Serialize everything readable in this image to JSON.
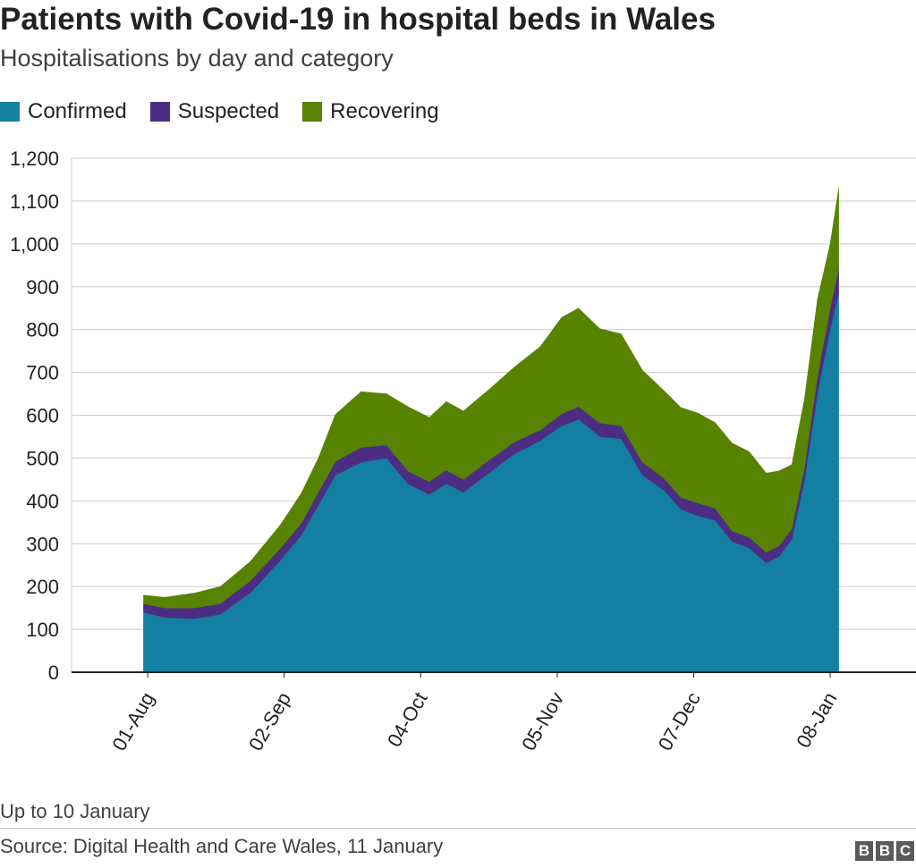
{
  "title": "Patients with Covid-19 in hospital beds in Wales",
  "subtitle": "Hospitalisations by day and category",
  "note": "Up to 10 January",
  "source": "Source: Digital Health and Care Wales, 11 January",
  "logo": [
    "B",
    "B",
    "C"
  ],
  "legend": [
    {
      "label": "Confirmed",
      "color": "#1380a1"
    },
    {
      "label": "Suspected",
      "color": "#4b2e83"
    },
    {
      "label": "Recovering",
      "color": "#588300"
    }
  ],
  "chart_data": {
    "type": "area",
    "stacked": true,
    "start_date": "2020-07-31",
    "end_date": "2021-01-10",
    "ylim": [
      0,
      1200
    ],
    "y_ticks": [
      "0",
      "100",
      "200",
      "300",
      "400",
      "500",
      "600",
      "700",
      "800",
      "900",
      "1,000",
      "1,100",
      "1,200"
    ],
    "x_ticks": [
      "01-Aug",
      "02-Sep",
      "04-Oct",
      "05-Nov",
      "07-Dec",
      "08-Jan"
    ],
    "x_tick_dates": [
      "2020-08-01",
      "2020-09-02",
      "2020-10-04",
      "2020-11-05",
      "2020-12-07",
      "2021-01-08"
    ],
    "grid": true,
    "legend_position": "top-left",
    "series": [
      {
        "name": "Confirmed",
        "color": "#1380a1",
        "points": [
          [
            "2020-07-31",
            140
          ],
          [
            "2020-08-05",
            128
          ],
          [
            "2020-08-12",
            125
          ],
          [
            "2020-08-18",
            135
          ],
          [
            "2020-08-25",
            185
          ],
          [
            "2020-09-01",
            260
          ],
          [
            "2020-09-06",
            320
          ],
          [
            "2020-09-10",
            390
          ],
          [
            "2020-09-14",
            460
          ],
          [
            "2020-09-20",
            490
          ],
          [
            "2020-09-26",
            500
          ],
          [
            "2020-10-01",
            440
          ],
          [
            "2020-10-06",
            415
          ],
          [
            "2020-10-10",
            440
          ],
          [
            "2020-10-14",
            420
          ],
          [
            "2020-10-20",
            465
          ],
          [
            "2020-10-26",
            510
          ],
          [
            "2020-11-01",
            540
          ],
          [
            "2020-11-06",
            575
          ],
          [
            "2020-11-10",
            590
          ],
          [
            "2020-11-15",
            550
          ],
          [
            "2020-11-20",
            545
          ],
          [
            "2020-11-25",
            460
          ],
          [
            "2020-11-30",
            425
          ],
          [
            "2020-12-04",
            380
          ],
          [
            "2020-12-08",
            365
          ],
          [
            "2020-12-12",
            355
          ],
          [
            "2020-12-16",
            305
          ],
          [
            "2020-12-20",
            290
          ],
          [
            "2020-12-24",
            255
          ],
          [
            "2020-12-27",
            270
          ],
          [
            "2020-12-30",
            310
          ],
          [
            "2021-01-02",
            450
          ],
          [
            "2021-01-05",
            650
          ],
          [
            "2021-01-08",
            800
          ],
          [
            "2021-01-10",
            885
          ]
        ]
      },
      {
        "name": "Suspected",
        "color": "#4b2e83",
        "points": [
          [
            "2020-07-31",
            20
          ],
          [
            "2020-08-05",
            22
          ],
          [
            "2020-08-12",
            25
          ],
          [
            "2020-08-18",
            25
          ],
          [
            "2020-08-25",
            28
          ],
          [
            "2020-09-01",
            28
          ],
          [
            "2020-09-06",
            28
          ],
          [
            "2020-09-10",
            30
          ],
          [
            "2020-09-14",
            32
          ],
          [
            "2020-09-20",
            35
          ],
          [
            "2020-09-26",
            30
          ],
          [
            "2020-10-01",
            30
          ],
          [
            "2020-10-06",
            30
          ],
          [
            "2020-10-10",
            32
          ],
          [
            "2020-10-14",
            30
          ],
          [
            "2020-10-20",
            30
          ],
          [
            "2020-10-26",
            28
          ],
          [
            "2020-11-01",
            25
          ],
          [
            "2020-11-06",
            28
          ],
          [
            "2020-11-10",
            30
          ],
          [
            "2020-11-15",
            32
          ],
          [
            "2020-11-20",
            30
          ],
          [
            "2020-11-25",
            30
          ],
          [
            "2020-11-30",
            28
          ],
          [
            "2020-12-04",
            28
          ],
          [
            "2020-12-08",
            30
          ],
          [
            "2020-12-12",
            28
          ],
          [
            "2020-12-16",
            25
          ],
          [
            "2020-12-20",
            25
          ],
          [
            "2020-12-24",
            25
          ],
          [
            "2020-12-27",
            25
          ],
          [
            "2020-12-30",
            25
          ],
          [
            "2021-01-02",
            30
          ],
          [
            "2021-01-05",
            40
          ],
          [
            "2021-01-08",
            50
          ],
          [
            "2021-01-10",
            60
          ]
        ]
      },
      {
        "name": "Recovering",
        "color": "#588300",
        "points": [
          [
            "2020-07-31",
            20
          ],
          [
            "2020-08-05",
            25
          ],
          [
            "2020-08-12",
            35
          ],
          [
            "2020-08-18",
            40
          ],
          [
            "2020-08-25",
            45
          ],
          [
            "2020-09-01",
            55
          ],
          [
            "2020-09-06",
            70
          ],
          [
            "2020-09-10",
            80
          ],
          [
            "2020-09-14",
            110
          ],
          [
            "2020-09-20",
            130
          ],
          [
            "2020-09-26",
            120
          ],
          [
            "2020-10-01",
            150
          ],
          [
            "2020-10-06",
            150
          ],
          [
            "2020-10-10",
            160
          ],
          [
            "2020-10-14",
            160
          ],
          [
            "2020-10-20",
            165
          ],
          [
            "2020-10-26",
            175
          ],
          [
            "2020-11-01",
            195
          ],
          [
            "2020-11-06",
            225
          ],
          [
            "2020-11-10",
            230
          ],
          [
            "2020-11-15",
            220
          ],
          [
            "2020-11-20",
            215
          ],
          [
            "2020-11-25",
            215
          ],
          [
            "2020-11-30",
            205
          ],
          [
            "2020-12-04",
            210
          ],
          [
            "2020-12-08",
            210
          ],
          [
            "2020-12-12",
            200
          ],
          [
            "2020-12-16",
            205
          ],
          [
            "2020-12-20",
            200
          ],
          [
            "2020-12-24",
            185
          ],
          [
            "2020-12-27",
            175
          ],
          [
            "2020-12-30",
            150
          ],
          [
            "2021-01-02",
            160
          ],
          [
            "2021-01-05",
            180
          ],
          [
            "2021-01-08",
            150
          ],
          [
            "2021-01-10",
            185
          ]
        ]
      }
    ]
  }
}
